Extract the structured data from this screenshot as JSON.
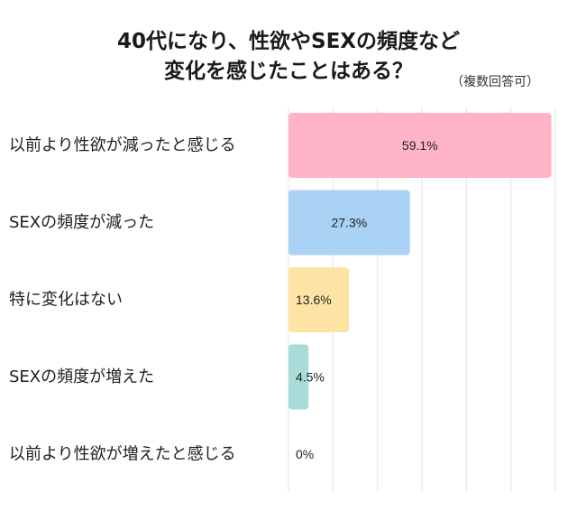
{
  "title_lines": [
    "40代になり、性欲やSEXの頻度など",
    "変化を感じたことはある？"
  ],
  "note": "（複数回答可）",
  "chart_data": {
    "type": "bar",
    "orientation": "horizontal",
    "title": "40代になり、性欲やSEXの頻度など変化を感じたことはある？",
    "subtitle": "（複数回答可）",
    "categories": [
      "以前より性欲が減ったと感じる",
      "SEXの頻度が減った",
      "特に変化はない",
      "SEXの頻度が増えた",
      "以前より性欲が増えたと感じる"
    ],
    "values": [
      59.1,
      27.3,
      13.6,
      4.5,
      0
    ],
    "value_labels": [
      "59.1%",
      "27.3%",
      "13.6%",
      "4.5%",
      "0%"
    ],
    "unit": "%",
    "colors": [
      "#ffb3c6",
      "#a9d2f4",
      "#fde3a4",
      "#a7dcd8",
      "#cccccc"
    ],
    "xlim": [
      0,
      60
    ],
    "grid": true,
    "gridline_color": "#e3e3e3"
  }
}
